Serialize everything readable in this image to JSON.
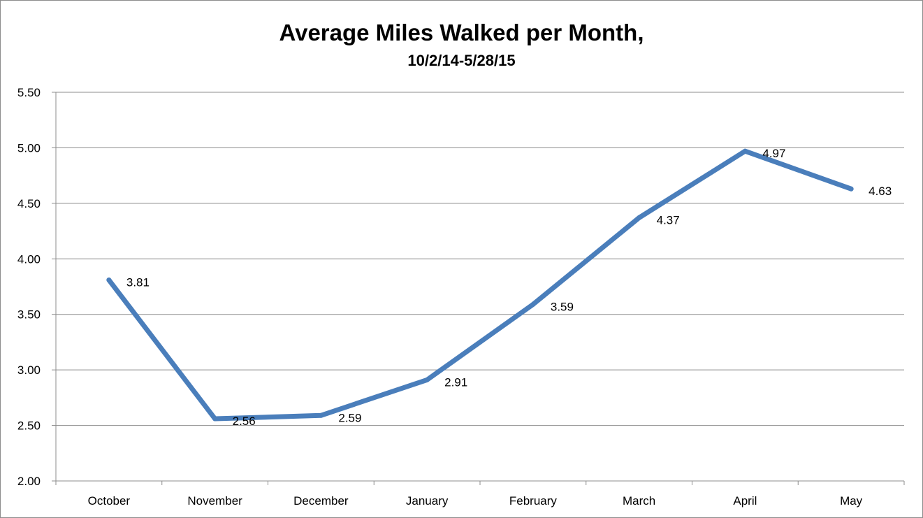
{
  "chart_data": {
    "type": "line",
    "title": "Average Miles Walked per Month,",
    "subtitle": "10/2/14-5/28/15",
    "xlabel": "",
    "ylabel": "",
    "categories": [
      "October",
      "November",
      "December",
      "January",
      "February",
      "March",
      "April",
      "May"
    ],
    "series": [
      {
        "values": [
          3.81,
          2.56,
          2.59,
          2.91,
          3.59,
          4.37,
          4.97,
          4.63
        ]
      }
    ],
    "data_labels": [
      "3.81",
      "2.56",
      "2.59",
      "2.91",
      "3.59",
      "4.37",
      "4.97",
      "4.63"
    ],
    "ylim": [
      2.0,
      5.5
    ],
    "yticks": [
      2.0,
      2.5,
      3.0,
      3.5,
      4.0,
      4.5,
      5.0,
      5.5
    ],
    "ytick_labels": [
      "2.00",
      "2.50",
      "3.00",
      "3.50",
      "4.00",
      "4.50",
      "5.00",
      "5.50"
    ],
    "grid": true,
    "legend": "none",
    "line_color": "#4a7ebb",
    "grid_color": "#8c8c8c"
  }
}
